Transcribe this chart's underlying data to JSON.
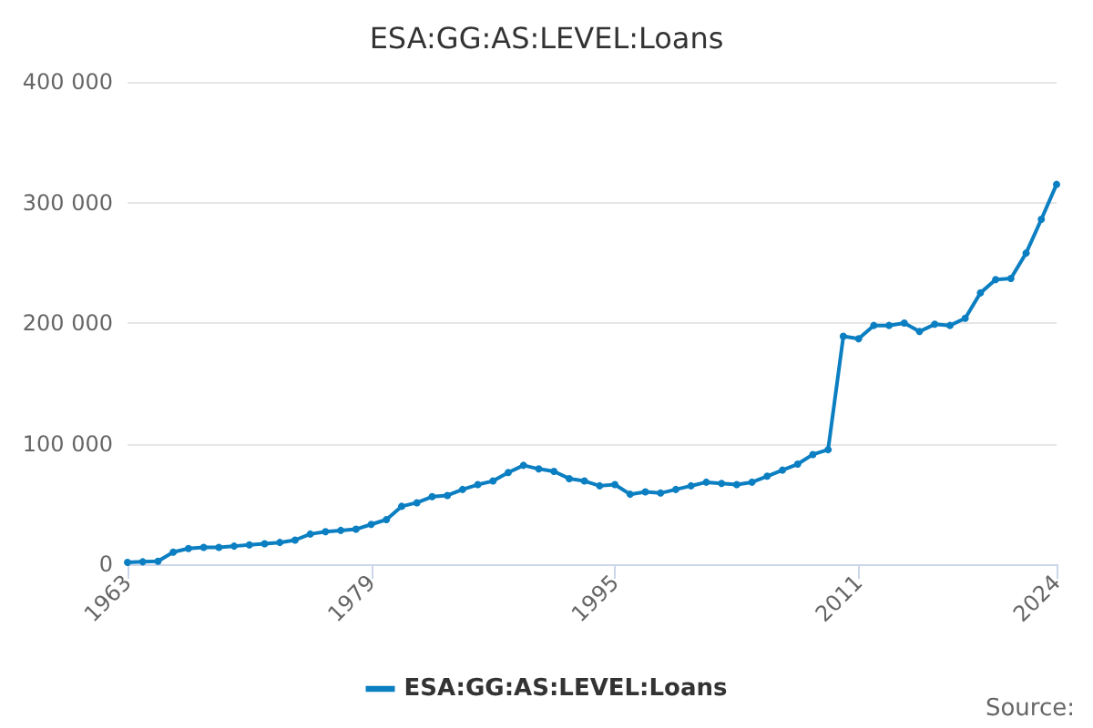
{
  "chart_data": {
    "type": "line",
    "title": "ESA:GG:AS:LEVEL:Loans",
    "x": [
      1963,
      1964,
      1965,
      1966,
      1967,
      1968,
      1969,
      1970,
      1971,
      1972,
      1973,
      1974,
      1975,
      1976,
      1977,
      1978,
      1979,
      1980,
      1981,
      1982,
      1983,
      1984,
      1985,
      1986,
      1987,
      1988,
      1989,
      1990,
      1991,
      1992,
      1993,
      1994,
      1995,
      1996,
      1997,
      1998,
      1999,
      2000,
      2001,
      2002,
      2003,
      2004,
      2005,
      2006,
      2007,
      2008,
      2009,
      2010,
      2011,
      2012,
      2013,
      2014,
      2015,
      2016,
      2017,
      2018,
      2019,
      2020,
      2021,
      2022,
      2023,
      2024
    ],
    "series": [
      {
        "name": "ESA:GG:AS:LEVEL:Loans",
        "color": "#0b7fc1",
        "values": [
          1500,
          2000,
          2500,
          10000,
          13000,
          14000,
          14000,
          15000,
          16000,
          17000,
          18000,
          20000,
          25000,
          27000,
          28000,
          29000,
          33000,
          37000,
          48000,
          51000,
          56000,
          57000,
          62000,
          66000,
          69000,
          76000,
          82000,
          79000,
          77000,
          71000,
          69000,
          65000,
          66000,
          58000,
          60000,
          59000,
          62000,
          65000,
          68000,
          67000,
          66000,
          68000,
          73000,
          78000,
          83000,
          91000,
          95000,
          189000,
          187000,
          198000,
          198000,
          200000,
          193000,
          199000,
          198000,
          204000,
          225000,
          236000,
          237000,
          258000,
          286000,
          315000
        ]
      }
    ],
    "xlim": [
      1963,
      2024
    ],
    "xticks": [
      1963,
      1979,
      1995,
      2011,
      2024
    ],
    "ylim": [
      0,
      400000
    ],
    "yticks": [
      0,
      {
        "value": 100000,
        "label": "100 000"
      },
      {
        "value": 200000,
        "label": "200 000"
      },
      {
        "value": 300000,
        "label": "300 000"
      },
      {
        "value": 400000,
        "label": "400 000"
      }
    ],
    "grid": "y",
    "legend": "bottom",
    "marker": "circle",
    "line_style": "solid",
    "annotations": [
      "Source:"
    ]
  }
}
